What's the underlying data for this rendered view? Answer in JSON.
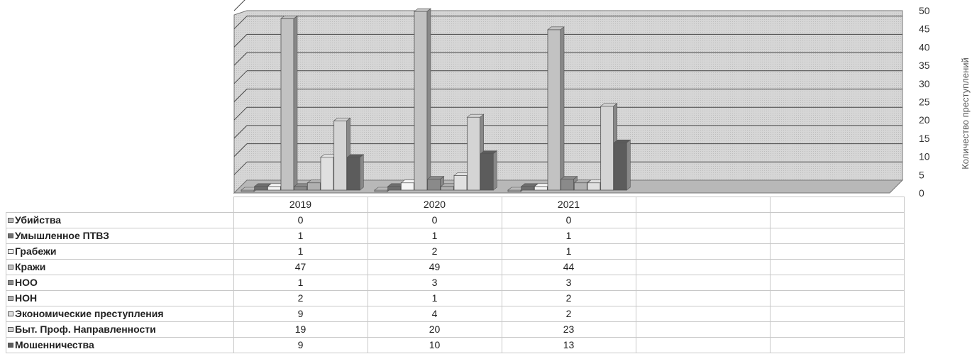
{
  "chart_data": {
    "type": "bar",
    "categories": [
      "2019",
      "2020",
      "2021"
    ],
    "series": [
      {
        "name": "Убийства",
        "values": [
          0,
          0,
          0
        ],
        "color": "#b9b9b9"
      },
      {
        "name": "Умышленное ПТВЗ",
        "values": [
          1,
          1,
          1
        ],
        "color": "#6e6e6e"
      },
      {
        "name": "Грабежи",
        "values": [
          1,
          2,
          1
        ],
        "color": "#f5f5f5"
      },
      {
        "name": "Кражи",
        "values": [
          47,
          49,
          44
        ],
        "color": "#c2c2c2"
      },
      {
        "name": "НОО",
        "values": [
          1,
          3,
          3
        ],
        "color": "#8a8a8a"
      },
      {
        "name": "НОН",
        "values": [
          2,
          1,
          2
        ],
        "color": "#b0b0b0"
      },
      {
        "name": "Экономические преступления",
        "values": [
          9,
          4,
          2
        ],
        "color": "#e0e0e0"
      },
      {
        "name": "Быт. Проф. Направленности",
        "values": [
          19,
          20,
          23
        ],
        "color": "#d4d4d4"
      },
      {
        "name": "Мошенничества",
        "values": [
          9,
          10,
          13
        ],
        "color": "#5c5c5c"
      }
    ],
    "ylabel": "Количество преступлений",
    "ylim": [
      0,
      50
    ],
    "yticks": [
      "0",
      "5",
      "10",
      "15",
      "20",
      "25",
      "30",
      "35",
      "40",
      "45",
      "50"
    ],
    "grid": true,
    "legend": "table-below"
  }
}
